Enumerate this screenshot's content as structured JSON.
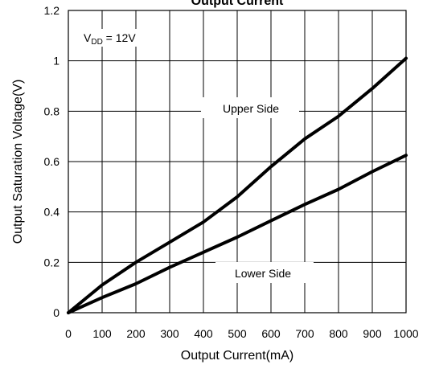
{
  "chart_data": {
    "type": "line",
    "title": "Output Current",
    "xlabel": "Output Current(mA)",
    "ylabel": "Output Saturation Voltage(V)",
    "xlim": [
      0,
      1000
    ],
    "ylim": [
      0,
      1.2
    ],
    "xticks": [
      "0",
      "100",
      "200",
      "300",
      "400",
      "500",
      "600",
      "700",
      "800",
      "900",
      "1000"
    ],
    "yticks": [
      "0",
      "0.2",
      "0.4",
      "0.6",
      "0.8",
      "1",
      "1.2"
    ],
    "grid": true,
    "condition": {
      "base": "V",
      "sub": "DD",
      "rest": " = 12V"
    },
    "series": [
      {
        "name": "Upper Side",
        "x": [
          0,
          100,
          200,
          300,
          400,
          500,
          600,
          700,
          800,
          900,
          1000
        ],
        "y": [
          0,
          0.11,
          0.2,
          0.28,
          0.36,
          0.46,
          0.58,
          0.69,
          0.78,
          0.89,
          1.01
        ]
      },
      {
        "name": "Lower Side",
        "x": [
          0,
          100,
          200,
          300,
          400,
          500,
          600,
          700,
          800,
          900,
          1000
        ],
        "y": [
          0,
          0.06,
          0.115,
          0.18,
          0.24,
          0.3,
          0.365,
          0.43,
          0.49,
          0.56,
          0.625
        ]
      }
    ]
  }
}
